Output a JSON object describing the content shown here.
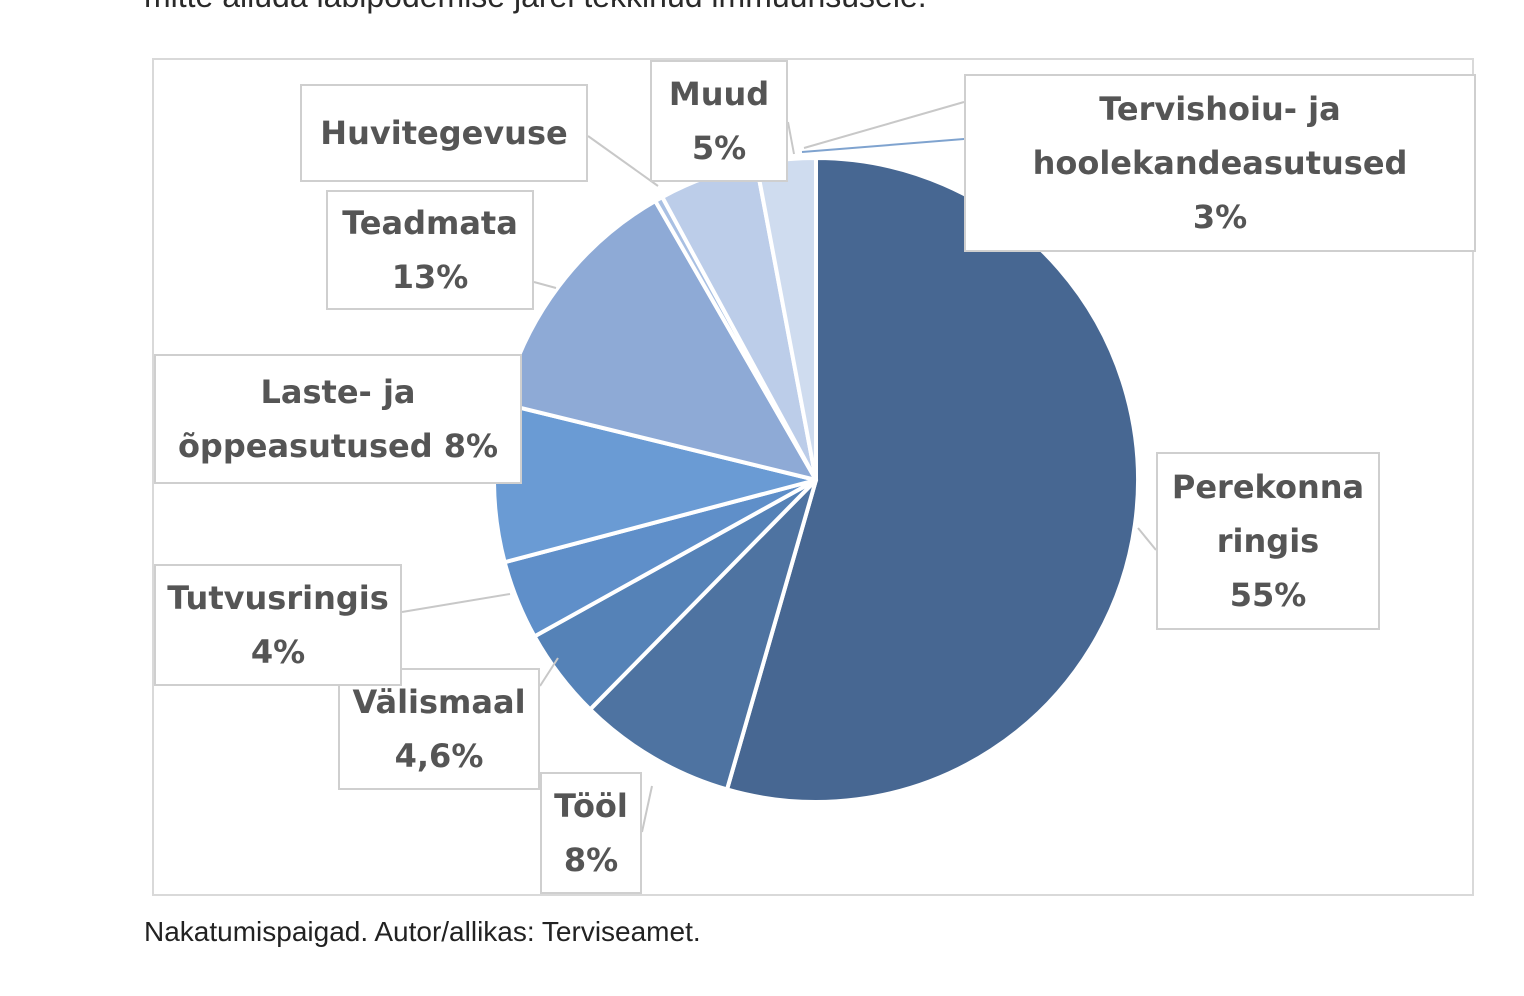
{
  "article": {
    "text_above": "mitte alluda läbipõdemise järel tekkinud immuunsusele.",
    "caption": "Nakatumispaigad. Autor/allikas: Terviseamet."
  },
  "chart_data": {
    "type": "pie",
    "title": "",
    "labels": [
      [
        "Perekonna",
        "ringis",
        "55%"
      ],
      [
        "Tööl",
        "8%"
      ],
      [
        "Välismaal",
        "4,6%"
      ],
      [
        "Tutvusringis",
        "4%"
      ],
      [
        "Laste- ja",
        "õppeasutused 8%"
      ],
      [
        "Teadmata",
        "13%"
      ],
      [
        "Huvitegevuse"
      ],
      [
        "Muud",
        "5%"
      ],
      [
        "Tervishoiu- ja",
        "hoolekandeasutused",
        "3%"
      ]
    ],
    "slices": [
      {
        "name": "Perekonna ringis",
        "value": 55,
        "color": "#476792"
      },
      {
        "name": "Tööl",
        "value": 8,
        "color": "#4e73a1"
      },
      {
        "name": "Välismaal",
        "value": 4.6,
        "color": "#5582b7"
      },
      {
        "name": "Tutvusringis",
        "value": 4,
        "color": "#5f8fc9"
      },
      {
        "name": "Laste- ja õppeasutused",
        "value": 8,
        "color": "#6a9bd4"
      },
      {
        "name": "Teadmata",
        "value": 13,
        "color": "#8eaad6"
      },
      {
        "name": "Huvitegevuse",
        "value": 0.4,
        "color": "#a9c0e3"
      },
      {
        "name": "Muud",
        "value": 5,
        "color": "#bccde9"
      },
      {
        "name": "Tervishoiu- ja hoolekandeasutused",
        "value": 3,
        "color": "#cfdcef"
      }
    ]
  }
}
